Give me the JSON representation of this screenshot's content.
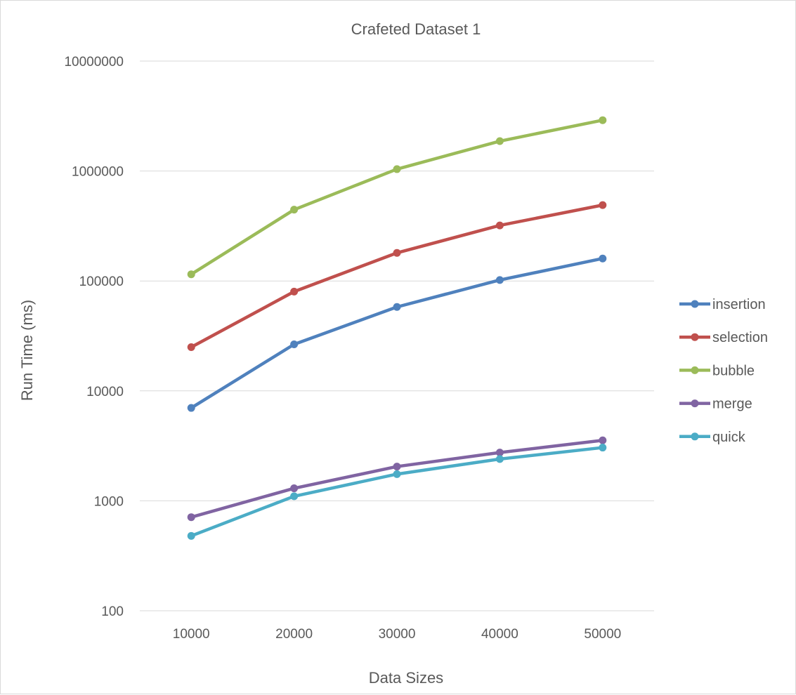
{
  "chart_data": {
    "type": "line",
    "title": "Crafeted Dataset 1",
    "xlabel": "Data Sizes",
    "ylabel": "Run Time (ms)",
    "yscale": "log",
    "ylim": [
      100,
      10000000
    ],
    "x": [
      10000,
      20000,
      30000,
      40000,
      50000
    ],
    "x_tick_labels": [
      "10000",
      "20000",
      "30000",
      "40000",
      "50000"
    ],
    "y_tick_values": [
      100,
      1000,
      10000,
      100000,
      1000000,
      10000000
    ],
    "y_tick_labels": [
      "100",
      "1000",
      "10000",
      "100000",
      "1000000",
      "10000000"
    ],
    "grid": true,
    "legend_position": "right",
    "series": [
      {
        "name": "insertion",
        "color": "#4f81bd",
        "values": [
          7000,
          26500,
          58000,
          102000,
          160000
        ]
      },
      {
        "name": "selection",
        "color": "#c0504d",
        "values": [
          25000,
          80000,
          180000,
          320000,
          490000
        ]
      },
      {
        "name": "bubble",
        "color": "#9bbb59",
        "values": [
          115000,
          445000,
          1040000,
          1870000,
          2900000
        ]
      },
      {
        "name": "merge",
        "color": "#8064a2",
        "values": [
          710,
          1300,
          2050,
          2750,
          3550
        ]
      },
      {
        "name": "quick",
        "color": "#4bacc6",
        "values": [
          480,
          1100,
          1750,
          2400,
          3050
        ]
      }
    ]
  }
}
